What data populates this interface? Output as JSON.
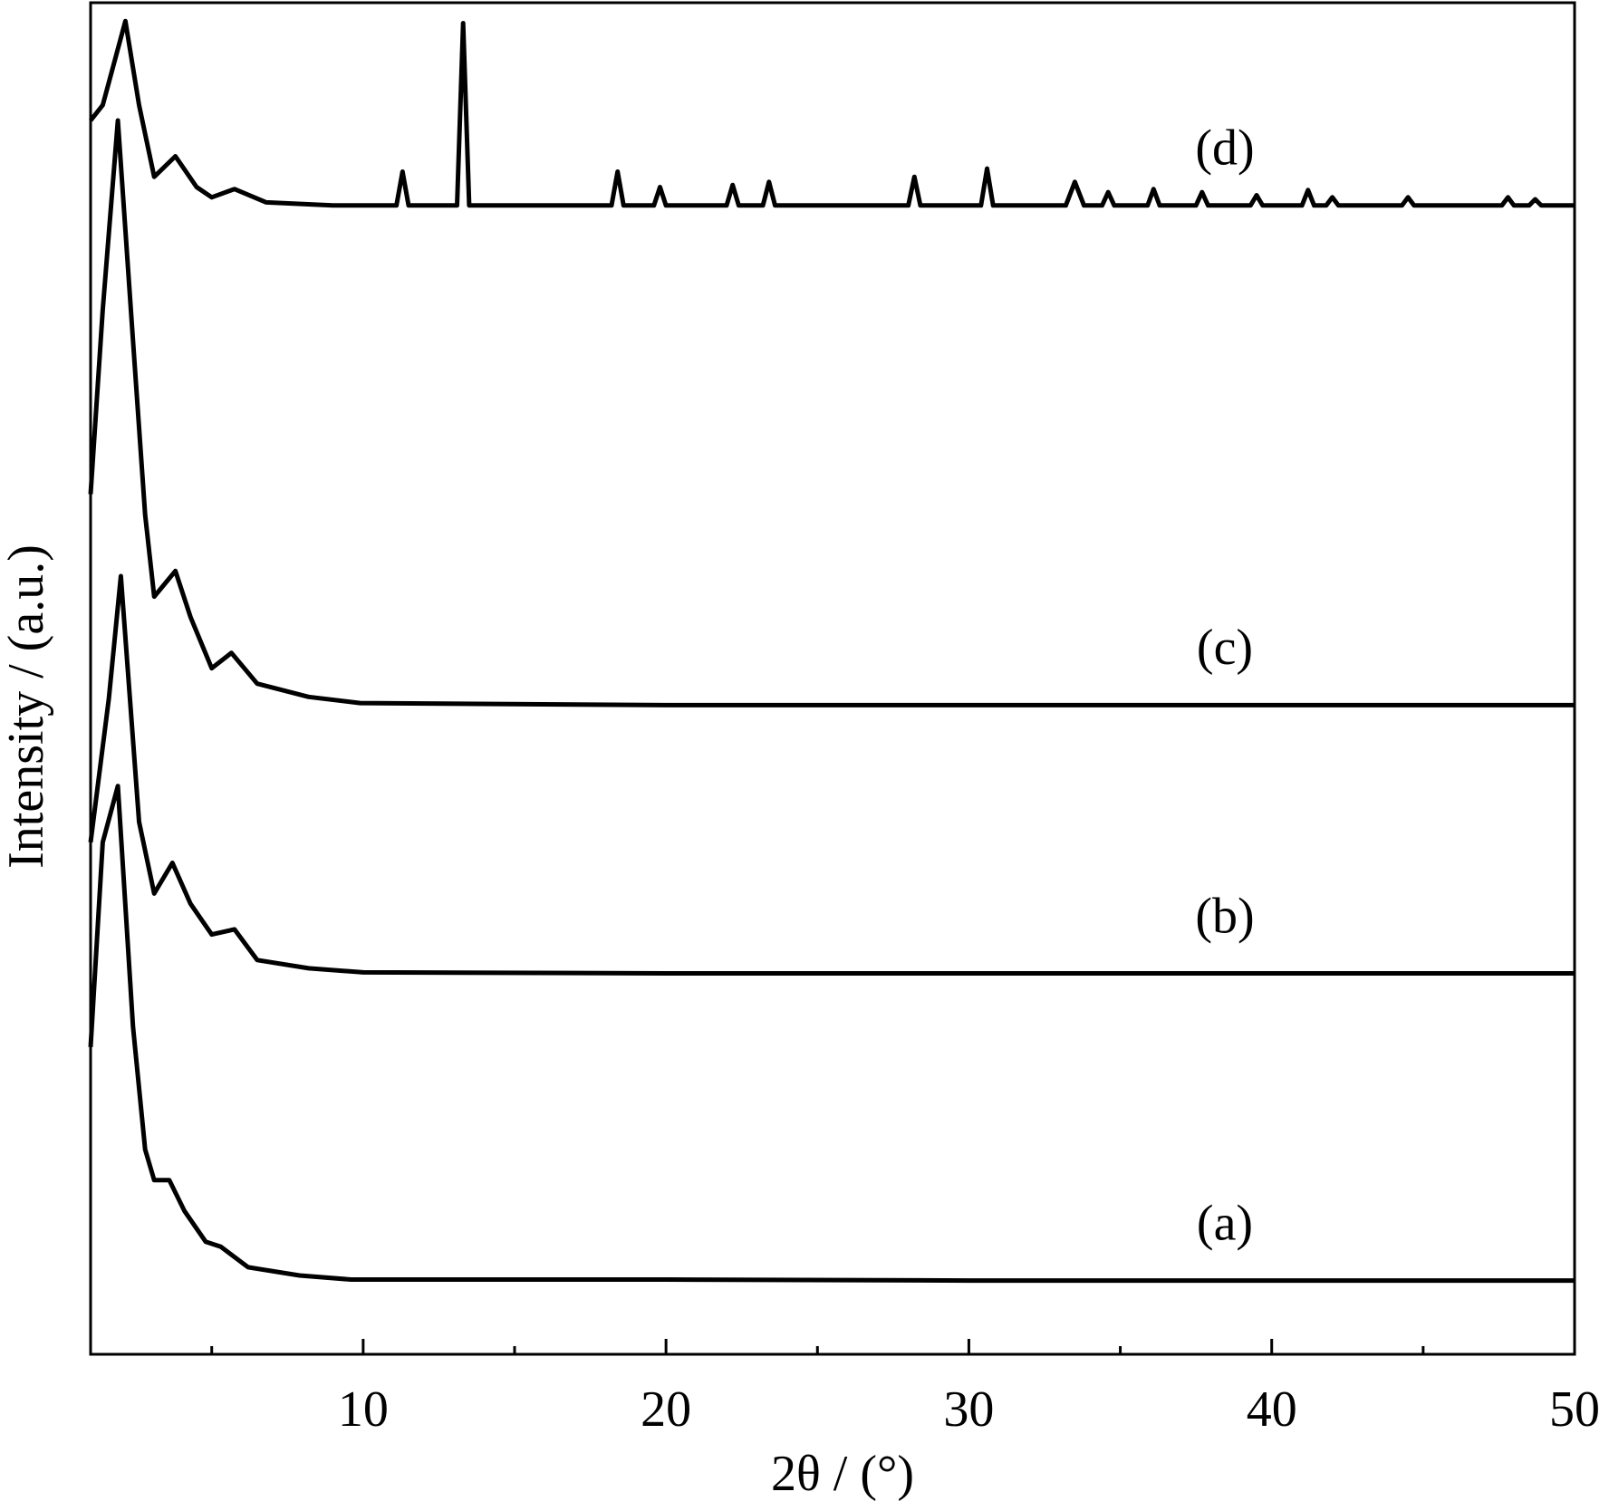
{
  "chart_data": {
    "type": "line",
    "xlabel": "2θ / (°)",
    "ylabel": "Intensity / (a.u.)",
    "xlim": [
      1,
      50
    ],
    "xticks": [
      10,
      20,
      30,
      40,
      50
    ],
    "xminor_ticks": [
      5,
      15,
      25,
      35,
      45
    ],
    "ylim": [
      0,
      1320
    ],
    "color": "#000000",
    "series": [
      {
        "name": "(a)",
        "color": "#000000",
        "x": [
          1,
          1.4,
          1.9,
          2.4,
          2.8,
          3.1,
          3.6,
          4.1,
          4.8,
          5.3,
          6.2,
          7.9,
          9.6,
          20,
          30,
          40,
          50
        ],
        "values": [
          300,
          500,
          555,
          320,
          200,
          170,
          170,
          140,
          110,
          105,
          85,
          77,
          73,
          73,
          72,
          72,
          72
        ]
      },
      {
        "name": "(b)",
        "color": "#000000",
        "x": [
          1,
          1.6,
          2.0,
          2.6,
          3.1,
          3.7,
          4.3,
          5.0,
          5.75,
          6.5,
          8.2,
          10,
          20,
          30,
          40,
          50
        ],
        "values": [
          500,
          640,
          760,
          520,
          450,
          480,
          440,
          410,
          415,
          385,
          377,
          373,
          372,
          372,
          372,
          372
        ]
      },
      {
        "name": "(c)",
        "color": "#000000",
        "x": [
          1,
          1.4,
          1.9,
          2.4,
          2.8,
          3.1,
          3.8,
          4.3,
          5.0,
          5.65,
          6.5,
          8.2,
          9.9,
          20,
          30,
          40,
          50
        ],
        "values": [
          840,
          1020,
          1205,
          990,
          820,
          740,
          765,
          720,
          670,
          685,
          655,
          642,
          636,
          634,
          634,
          634,
          634
        ]
      },
      {
        "name": "(d)",
        "color": "#000000",
        "x": [
          1,
          1.4,
          2.15,
          2.6,
          3.1,
          3.8,
          4.5,
          5.0,
          5.75,
          6.8,
          9,
          11.1,
          11.3,
          11.5,
          13.1,
          13.3,
          13.5,
          18.2,
          18.4,
          18.6,
          19.6,
          19.8,
          20.0,
          22.0,
          22.2,
          22.4,
          23.2,
          23.4,
          23.6,
          28.0,
          28.2,
          28.4,
          30.4,
          30.6,
          30.8,
          33.2,
          33.5,
          33.8,
          34.4,
          34.6,
          34.8,
          35.9,
          36.1,
          36.3,
          37.5,
          37.7,
          37.9,
          39.3,
          39.5,
          39.7,
          41.0,
          41.2,
          41.4,
          41.8,
          42.0,
          42.2,
          44.3,
          44.5,
          44.7,
          47.6,
          47.8,
          48.0,
          48.5,
          48.7,
          48.9,
          50
        ],
        "values": [
          1205,
          1220,
          1302,
          1220,
          1150,
          1170,
          1140,
          1130,
          1138,
          1125,
          1122,
          1122,
          1155,
          1122,
          1122,
          1300,
          1122,
          1122,
          1155,
          1122,
          1122,
          1140,
          1122,
          1122,
          1142,
          1122,
          1122,
          1145,
          1122,
          1122,
          1150,
          1122,
          1122,
          1158,
          1122,
          1122,
          1145,
          1122,
          1122,
          1135,
          1122,
          1122,
          1138,
          1122,
          1122,
          1135,
          1122,
          1122,
          1132,
          1122,
          1122,
          1137,
          1122,
          1122,
          1130,
          1122,
          1122,
          1130,
          1122,
          1122,
          1130,
          1122,
          1122,
          1128,
          1122,
          1122
        ]
      }
    ]
  }
}
